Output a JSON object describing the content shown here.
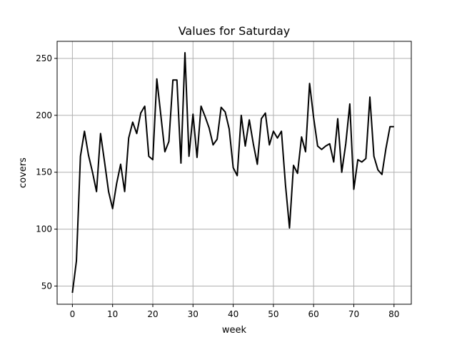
{
  "chart_data": {
    "type": "line",
    "title": "Values for Saturday",
    "xlabel": "week",
    "ylabel": "covers",
    "xlim": [
      -3.8,
      84.3
    ],
    "ylim": [
      34,
      265
    ],
    "xticks": [
      0,
      10,
      20,
      30,
      40,
      50,
      60,
      70,
      80
    ],
    "yticks": [
      50,
      100,
      150,
      200,
      250
    ],
    "grid": true,
    "series": [
      {
        "color": "#000000",
        "x": [
          0,
          1,
          2,
          3,
          4,
          5,
          6,
          7,
          8,
          9,
          10,
          11,
          12,
          13,
          14,
          15,
          16,
          17,
          18,
          19,
          20,
          21,
          22,
          23,
          24,
          25,
          26,
          27,
          28,
          29,
          30,
          31,
          32,
          33,
          34,
          35,
          36,
          37,
          38,
          39,
          40,
          41,
          42,
          43,
          44,
          45,
          46,
          47,
          48,
          49,
          50,
          51,
          52,
          53,
          54,
          55,
          56,
          57,
          58,
          59,
          60,
          61,
          62,
          63,
          64,
          65,
          66,
          67,
          68,
          69,
          70,
          71,
          72,
          73,
          74,
          75,
          76,
          77,
          78,
          79,
          80
        ],
        "values": [
          44,
          72,
          164,
          186,
          165,
          150,
          133,
          184,
          159,
          133,
          118,
          140,
          157,
          133,
          180,
          194,
          184,
          202,
          208,
          164,
          161,
          232,
          200,
          168,
          177,
          231,
          231,
          158,
          255,
          164,
          201,
          163,
          208,
          199,
          189,
          174,
          179,
          207,
          203,
          188,
          154,
          147,
          200,
          173,
          196,
          175,
          157,
          197,
          202,
          174,
          186,
          180,
          186,
          139,
          101,
          156,
          149,
          181,
          168,
          228,
          198,
          173,
          170,
          173,
          175,
          159,
          197,
          150,
          175,
          210,
          135,
          161,
          159,
          162,
          216,
          164,
          152,
          148,
          171,
          190,
          190
        ]
      }
    ]
  }
}
